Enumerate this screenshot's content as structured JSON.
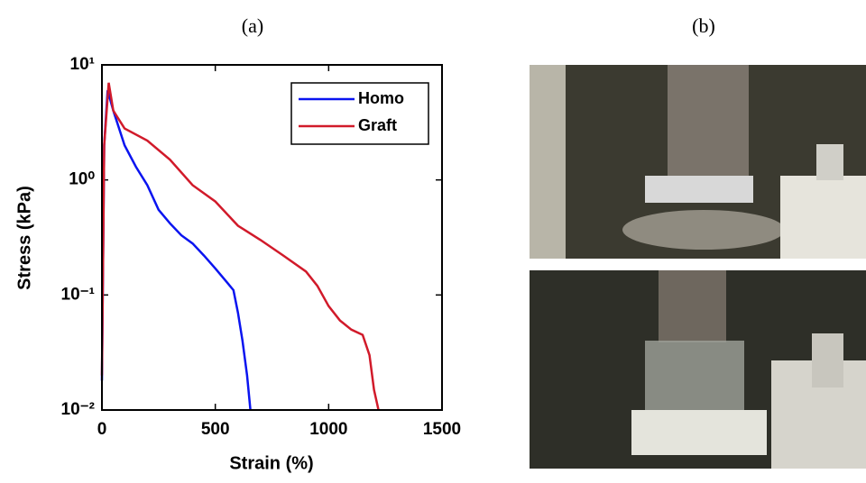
{
  "panel_labels": [
    "(a)",
    "(b)"
  ],
  "chart_data": {
    "type": "line",
    "xlabel": "Strain (%)",
    "ylabel": "Stress (kPa)",
    "xlim": [
      0,
      1500
    ],
    "xticks": [
      0,
      500,
      1000,
      1500
    ],
    "ylim": [
      0.01,
      10
    ],
    "log_y": true,
    "yticks": [
      {
        "value": 0.01,
        "label": "10⁻²"
      },
      {
        "value": 0.1,
        "label": "10⁻¹"
      },
      {
        "value": 1,
        "label": "10⁰"
      },
      {
        "value": 10,
        "label": "10¹"
      }
    ],
    "legend": "upper right",
    "series": [
      {
        "name": "Homo",
        "color": "#0a14f0",
        "x": [
          0,
          10,
          25,
          50,
          100,
          150,
          200,
          250,
          300,
          350,
          400,
          450,
          500,
          550,
          580,
          600,
          620,
          640,
          655
        ],
        "values": [
          0.018,
          2,
          6,
          4,
          2,
          1.3,
          0.9,
          0.55,
          0.42,
          0.33,
          0.28,
          0.22,
          0.17,
          0.13,
          0.11,
          0.07,
          0.04,
          0.02,
          0.01
        ]
      },
      {
        "name": "Graft",
        "color": "#d11a2a",
        "x": [
          0,
          10,
          30,
          50,
          100,
          200,
          300,
          400,
          500,
          600,
          700,
          800,
          900,
          950,
          1000,
          1050,
          1100,
          1150,
          1180,
          1200,
          1220
        ],
        "values": [
          0.02,
          2,
          7,
          4,
          2.8,
          2.2,
          1.5,
          0.9,
          0.65,
          0.4,
          0.3,
          0.22,
          0.16,
          0.12,
          0.08,
          0.06,
          0.05,
          0.045,
          0.03,
          0.015,
          0.01
        ]
      }
    ]
  }
}
